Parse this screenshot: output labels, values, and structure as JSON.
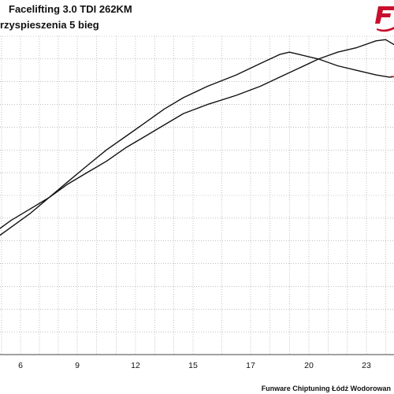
{
  "header": {
    "title": "Facelifting 3.0 TDI 262KM",
    "subtitle": "rzyspieszenia 5 bieg"
  },
  "footer": {
    "credit": "Funware Chiptuning Łódź Wodorowan"
  },
  "colors": {
    "curve": "#111111",
    "red_trace": "#d8262a",
    "grid": "#9a9a9a",
    "logo": "#c8102e"
  },
  "logo": {
    "icon": "funware-logo-icon"
  },
  "chart_data": {
    "type": "line",
    "title": "Facelifting 3.0 TDI 262KM",
    "subtitle": "rzyspieszenia 5 bieg",
    "xlabel": "",
    "ylabel": "",
    "xlim": [
      4.5,
      25
    ],
    "ylim": [
      0,
      14
    ],
    "x_ticks": [
      6,
      9,
      12,
      15,
      17,
      20,
      23
    ],
    "grid": true,
    "series": [
      {
        "x": [
          4.5,
          5.5,
          6.5,
          7.5,
          8.5,
          9.5,
          10.5,
          11.5,
          12.5,
          13.5,
          14.5,
          15.5,
          16.5,
          17.5,
          18.5,
          19.0,
          19.5,
          20.5,
          21.5,
          22.5,
          23.5,
          24.2,
          24.7,
          25
        ],
        "y": [
          5.0,
          5.6,
          6.2,
          6.9,
          7.6,
          8.3,
          9.0,
          9.6,
          10.2,
          10.8,
          11.3,
          11.8,
          12.3,
          12.8,
          13.2,
          13.3,
          13.2,
          13.0,
          12.7,
          12.5,
          12.3,
          12.2,
          12.25,
          12.2
        ]
      },
      {
        "x": [
          4.5,
          5.5,
          6.5,
          7.5,
          8.5,
          9.5,
          10.5,
          11.5,
          12.5,
          13.5,
          14.5,
          15.5,
          16.5,
          17.5,
          18.5,
          19.5,
          20.5,
          21.5,
          22.5,
          23.5,
          24.0,
          24.5,
          25
        ],
        "y": [
          5.3,
          5.9,
          6.4,
          6.9,
          7.5,
          8.0,
          8.5,
          9.1,
          9.6,
          10.1,
          10.6,
          11.0,
          11.4,
          11.8,
          12.2,
          12.6,
          13.0,
          13.3,
          13.5,
          13.8,
          13.85,
          13.6,
          13.3
        ]
      }
    ],
    "red_trace": {
      "x": [
        24.3,
        24.8,
        25
      ],
      "y": [
        12.25,
        12.1,
        12.0
      ]
    }
  }
}
